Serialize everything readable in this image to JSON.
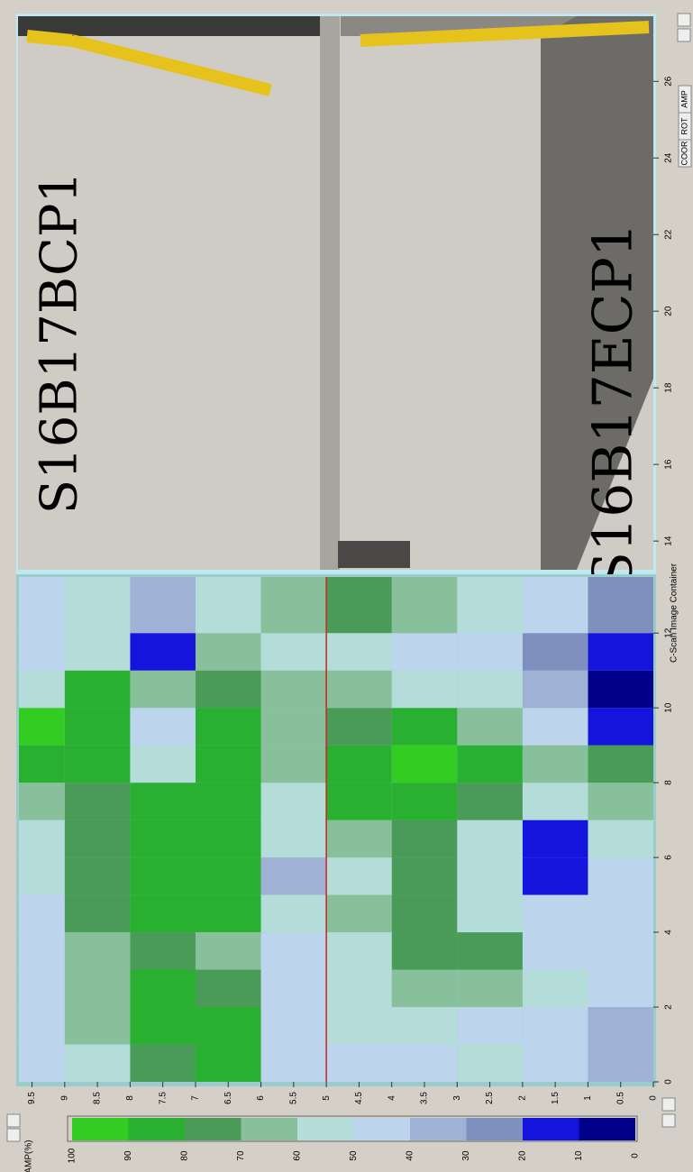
{
  "photo": {
    "labels": [
      "S16B17BCP1",
      "S16B17ECP1"
    ],
    "axis": {
      "lim": [
        13.25,
        27.7
      ],
      "ticks": [
        14,
        16,
        18,
        20,
        22,
        24,
        26
      ]
    }
  },
  "toolbar": {
    "buttons": [
      "AMP",
      "ROT",
      "COOR"
    ]
  },
  "container_title": "C-Scan Image Container",
  "heatmap": {
    "xlim": [
      0,
      13.5
    ],
    "xticks": [
      0,
      2,
      4,
      6,
      8,
      10,
      12
    ],
    "ylim": [
      0,
      9.7
    ],
    "yticks": [
      0,
      0.5,
      1,
      1.5,
      2,
      2.5,
      3,
      3.5,
      4,
      4.5,
      5,
      5.5,
      6,
      6.5,
      7,
      7.5,
      8,
      8.5,
      9,
      9.5
    ],
    "marker_line": 5,
    "values": [
      [
        35,
        45,
        55,
        50,
        45,
        45,
        85,
        75,
        55,
        45
      ],
      [
        40,
        45,
        50,
        60,
        55,
        45,
        85,
        90,
        65,
        45
      ],
      [
        45,
        55,
        65,
        70,
        60,
        50,
        75,
        85,
        70,
        45
      ],
      [
        45,
        50,
        75,
        75,
        55,
        45,
        70,
        80,
        70,
        50
      ],
      [
        45,
        45,
        60,
        80,
        65,
        55,
        90,
        85,
        75,
        45
      ],
      [
        45,
        15,
        55,
        75,
        60,
        40,
        90,
        85,
        75,
        55
      ],
      [
        55,
        20,
        55,
        80,
        70,
        55,
        90,
        90,
        80,
        60
      ],
      [
        65,
        55,
        75,
        90,
        85,
        60,
        90,
        85,
        80,
        70
      ],
      [
        75,
        70,
        90,
        95,
        90,
        70,
        85,
        55,
        85,
        90
      ],
      [
        15,
        45,
        70,
        85,
        80,
        65,
        85,
        50,
        85,
        95
      ],
      [
        10,
        35,
        55,
        60,
        65,
        65,
        80,
        70,
        85,
        60
      ],
      [
        15,
        30,
        45,
        50,
        55,
        55,
        65,
        15,
        60,
        50
      ],
      [
        30,
        50,
        60,
        70,
        75,
        65,
        55,
        40,
        55,
        50
      ]
    ]
  },
  "legend": {
    "title": "AMP(%)",
    "ticks": [
      100,
      90,
      80,
      70,
      60,
      50,
      40,
      30,
      20,
      10,
      0
    ],
    "colors": [
      "#33cc22",
      "#29b030",
      "#4a9a58",
      "#88c09c",
      "#b4dcd8",
      "#bcd4ec",
      "#9fb2d6",
      "#7f90bf",
      "#1414dd",
      "#00008a"
    ]
  }
}
